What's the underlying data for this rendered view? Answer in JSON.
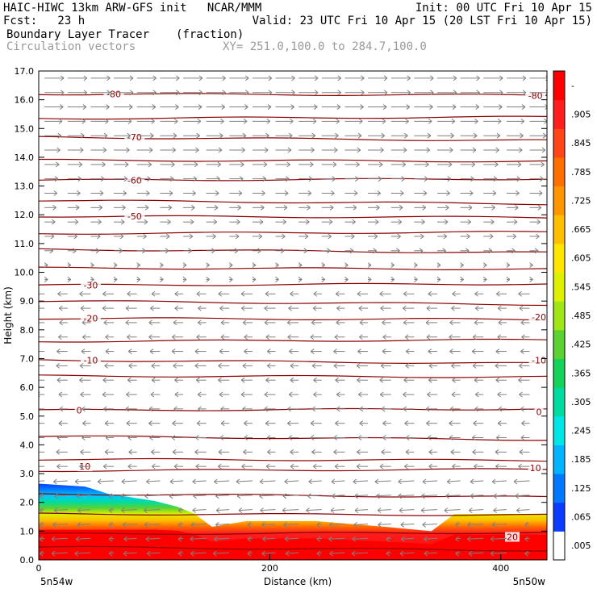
{
  "header": {
    "line1_left": "HAIC-HIWC 13km ARW-GFS init   NCAR/MMM",
    "line1_right": "Init: 00 UTC Fri 10 Apr 15",
    "line2_left": "Fcst:   23 h",
    "line2_right": "Valid: 23 UTC Fri 10 Apr 15 (20 LST Fri 10 Apr 15)",
    "field_name": "Boundary Layer Tracer",
    "field_units": "(fraction)",
    "vector_label": "Circulation vectors",
    "xy_label": "XY= 251.0,100.0 to 284.7,100.0"
  },
  "chart_data": {
    "type": "heatmap",
    "title": "Boundary Layer Tracer",
    "units": "(fraction)",
    "xlabel": "Distance (km)",
    "ylabel": "Height (km)",
    "xlim": [
      0,
      440
    ],
    "ylim": [
      0,
      17
    ],
    "x_ticks": [
      0,
      200,
      400
    ],
    "y_ticks": [
      "0.0",
      "1.0",
      "2.0",
      "3.0",
      "4.0",
      "5.0",
      "6.0",
      "7.0",
      "8.0",
      "9.0",
      "10.0",
      "11.0",
      "12.0",
      "13.0",
      "14.0",
      "15.0",
      "16.0",
      "17.0"
    ],
    "x_endpoint_labels": {
      "left": "5n54w",
      "right": "5n50w"
    },
    "colorbar": {
      "labels": [
        ".005",
        ".065",
        ".125",
        ".185",
        ".245",
        ".305",
        ".365",
        ".425",
        ".485",
        ".545",
        ".605",
        ".665",
        ".725",
        ".785",
        ".845",
        ".905",
        "-"
      ],
      "colors": [
        "#ffffff",
        "#0a3cff",
        "#0078ff",
        "#00b4ff",
        "#00e6e6",
        "#00dca0",
        "#14d25a",
        "#5ad232",
        "#a0e614",
        "#dcf000",
        "#ffe600",
        "#ffbe00",
        "#ff9600",
        "#ff6e00",
        "#ff4614",
        "#ff1e1e",
        "#ff0000"
      ]
    },
    "contour_labels": [
      {
        "text": "-80",
        "x": 65,
        "y": 16.2
      },
      {
        "text": "-80",
        "x": 430,
        "y": 16.15
      },
      {
        "text": "-70",
        "x": 83,
        "y": 14.7
      },
      {
        "text": "-60",
        "x": 83,
        "y": 13.2
      },
      {
        "text": "-50",
        "x": 83,
        "y": 11.95
      },
      {
        "text": "-30",
        "x": 45,
        "y": 9.55
      },
      {
        "text": "-20",
        "x": 45,
        "y": 8.4
      },
      {
        "text": "-20",
        "x": 433,
        "y": 8.45
      },
      {
        "text": "-10",
        "x": 45,
        "y": 6.95
      },
      {
        "text": "-10",
        "x": 433,
        "y": 6.95
      },
      {
        "text": "0",
        "x": 35,
        "y": 5.2
      },
      {
        "text": "0",
        "x": 433,
        "y": 5.15
      },
      {
        "text": "10",
        "x": 40,
        "y": 3.25
      },
      {
        "text": "10",
        "x": 430,
        "y": 3.2
      },
      {
        "text": "20",
        "x": 410,
        "y": 0.8
      }
    ],
    "tracer_top_km": [
      {
        "x": 0,
        "top": 2.65
      },
      {
        "x": 40,
        "top": 2.55
      },
      {
        "x": 60,
        "top": 2.3
      },
      {
        "x": 100,
        "top": 2.05
      },
      {
        "x": 120,
        "top": 1.85
      },
      {
        "x": 135,
        "top": 1.6
      },
      {
        "x": 150,
        "top": 1.15
      },
      {
        "x": 180,
        "top": 1.35
      },
      {
        "x": 240,
        "top": 1.35
      },
      {
        "x": 300,
        "top": 1.15
      },
      {
        "x": 340,
        "top": 1.0
      },
      {
        "x": 360,
        "top": 1.6
      },
      {
        "x": 440,
        "top": 1.6
      }
    ]
  }
}
